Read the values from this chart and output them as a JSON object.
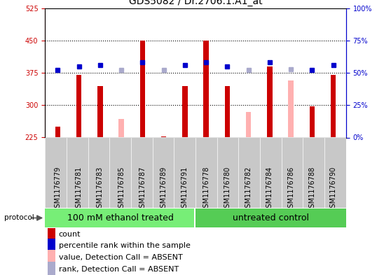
{
  "title": "GDS5082 / Dr.2706.1.A1_at",
  "samples": [
    "GSM1176779",
    "GSM1176781",
    "GSM1176783",
    "GSM1176785",
    "GSM1176787",
    "GSM1176789",
    "GSM1176791",
    "GSM1176778",
    "GSM1176780",
    "GSM1176782",
    "GSM1176784",
    "GSM1176786",
    "GSM1176788",
    "GSM1176790"
  ],
  "count_values": [
    250,
    370,
    345,
    null,
    450,
    228,
    345,
    450,
    345,
    null,
    390,
    null,
    297,
    370
  ],
  "count_absent_values": [
    null,
    null,
    null,
    268,
    null,
    null,
    null,
    null,
    null,
    285,
    null,
    358,
    null,
    null
  ],
  "rank_values": [
    52,
    55,
    56,
    null,
    58,
    null,
    56,
    58,
    55,
    null,
    58,
    null,
    52,
    56
  ],
  "rank_absent_values": [
    null,
    null,
    null,
    52,
    null,
    52,
    null,
    null,
    null,
    52,
    null,
    53,
    null,
    null
  ],
  "group1_count": 7,
  "group2_count": 7,
  "group1_label": "100 mM ethanol treated",
  "group2_label": "untreated control",
  "protocol_label": "protocol",
  "ylim_left": [
    225,
    525
  ],
  "ylim_right": [
    0,
    100
  ],
  "yticks_left": [
    225,
    300,
    375,
    450,
    525
  ],
  "yticks_right": [
    0,
    25,
    50,
    75,
    100
  ],
  "count_color": "#cc0000",
  "count_absent_color": "#ffb0b0",
  "rank_color": "#0000cc",
  "rank_absent_color": "#aaaacc",
  "group1_color": "#77ee77",
  "group2_color": "#55cc55",
  "bg_color": "#c8c8c8",
  "plot_bg": "#ffffff",
  "title_fontsize": 10,
  "tick_fontsize": 7,
  "legend_fontsize": 8,
  "group_fontsize": 9,
  "left_tick_color": "#cc0000",
  "right_tick_color": "#0000cc",
  "bar_width": 0.25
}
